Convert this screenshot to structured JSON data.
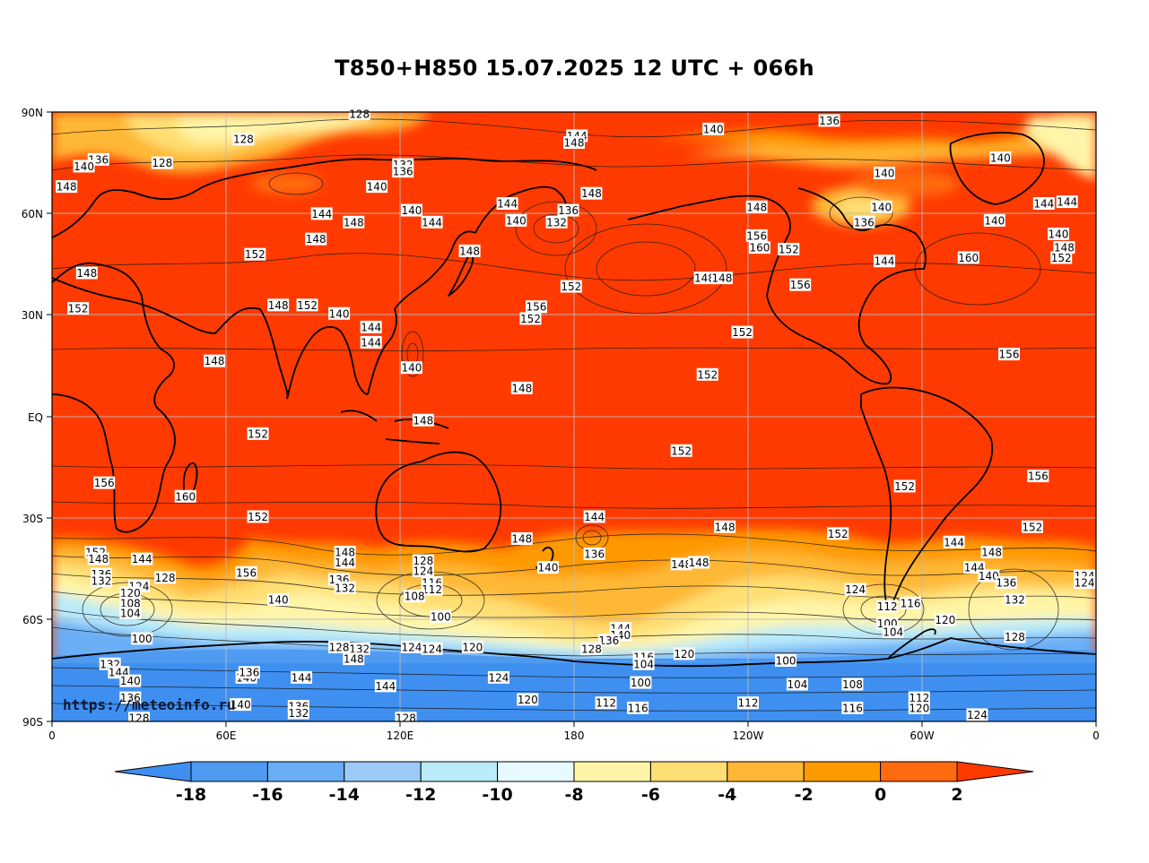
{
  "title": "T850+H850 15.07.2025 12 UTC + 066h",
  "watermark": "https://meteoinfo.ru",
  "y_axis_labels": [
    "90N",
    "60N",
    "30N",
    "EQ",
    "30S",
    "60S",
    "90S"
  ],
  "x_axis_labels": [
    "0",
    "60E",
    "120E",
    "180",
    "120W",
    "60W",
    "0"
  ],
  "colorbar": {
    "ticks": [
      "-18",
      "-16",
      "-14",
      "-12",
      "-10",
      "-8",
      "-6",
      "-4",
      "-2",
      "0",
      "2"
    ],
    "colors": [
      "#3e8ff0",
      "#4f9bf2",
      "#6aaef5",
      "#9ccaf8",
      "#b9ebfa",
      "#e6faff",
      "#fff5a8",
      "#ffdf73",
      "#ffb835",
      "#ff9900",
      "#ff6a10",
      "#ff3a00"
    ]
  },
  "contour_labels": [
    {
      "t": "128",
      "lon": 106,
      "lat": 89.5
    },
    {
      "t": "128",
      "lon": 66,
      "lat": 82
    },
    {
      "t": "128",
      "lon": 38,
      "lat": 75
    },
    {
      "t": "136",
      "lon": 16,
      "lat": 76
    },
    {
      "t": "140",
      "lon": 11,
      "lat": 74
    },
    {
      "t": "148",
      "lon": 5,
      "lat": 68
    },
    {
      "t": "132",
      "lon": 121,
      "lat": 74.5
    },
    {
      "t": "136",
      "lon": 121,
      "lat": 72.5
    },
    {
      "t": "140",
      "lon": 112,
      "lat": 68
    },
    {
      "t": "144",
      "lon": 181,
      "lat": 83
    },
    {
      "t": "148",
      "lon": 180,
      "lat": 81
    },
    {
      "t": "140",
      "lon": -132,
      "lat": 85
    },
    {
      "t": "136",
      "lon": -92,
      "lat": 87.5
    },
    {
      "t": "140",
      "lon": -33,
      "lat": 76.5
    },
    {
      "t": "140",
      "lon": -73,
      "lat": 72
    },
    {
      "t": "148",
      "lon": 186,
      "lat": 66
    },
    {
      "t": "140",
      "lon": -74,
      "lat": 62
    },
    {
      "t": "144",
      "lon": -18,
      "lat": 63
    },
    {
      "t": "144",
      "lon": -10,
      "lat": 63.5
    },
    {
      "t": "140",
      "lon": -35,
      "lat": 58
    },
    {
      "t": "140",
      "lon": -13,
      "lat": 54
    },
    {
      "t": "148",
      "lon": -11,
      "lat": 50
    },
    {
      "t": "152",
      "lon": -12,
      "lat": 47
    },
    {
      "t": "160",
      "lon": -44,
      "lat": 47
    },
    {
      "t": "144",
      "lon": 93,
      "lat": 60
    },
    {
      "t": "148",
      "lon": 104,
      "lat": 57.5
    },
    {
      "t": "148",
      "lon": 91,
      "lat": 52.5
    },
    {
      "t": "140",
      "lon": 124,
      "lat": 61
    },
    {
      "t": "144",
      "lon": 131,
      "lat": 57.5
    },
    {
      "t": "144",
      "lon": 157,
      "lat": 63
    },
    {
      "t": "136",
      "lon": 178,
      "lat": 61
    },
    {
      "t": "140",
      "lon": 160,
      "lat": 58
    },
    {
      "t": "132",
      "lon": 174,
      "lat": 57.5
    },
    {
      "t": "148",
      "lon": 144,
      "lat": 49
    },
    {
      "t": "148",
      "lon": -117,
      "lat": 62
    },
    {
      "t": "152",
      "lon": -106,
      "lat": 49.5
    },
    {
      "t": "136",
      "lon": -80,
      "lat": 57.5
    },
    {
      "t": "156",
      "lon": -117,
      "lat": 53.5
    },
    {
      "t": "160",
      "lon": -116,
      "lat": 50
    },
    {
      "t": "152",
      "lon": 70,
      "lat": 48
    },
    {
      "t": "148",
      "lon": 12,
      "lat": 42.5
    },
    {
      "t": "152",
      "lon": 9,
      "lat": 32
    },
    {
      "t": "148",
      "lon": 78,
      "lat": 33
    },
    {
      "t": "152",
      "lon": 88,
      "lat": 33
    },
    {
      "t": "140",
      "lon": 99,
      "lat": 30.5
    },
    {
      "t": "144",
      "lon": 110,
      "lat": 26.5
    },
    {
      "t": "144",
      "lon": 110,
      "lat": 22
    },
    {
      "t": "152",
      "lon": 179,
      "lat": 38.5
    },
    {
      "t": "156",
      "lon": 167,
      "lat": 32.5
    },
    {
      "t": "152",
      "lon": 165,
      "lat": 29
    },
    {
      "t": "148",
      "lon": -135,
      "lat": 41
    },
    {
      "t": "148",
      "lon": -129,
      "lat": 41
    },
    {
      "t": "156",
      "lon": -102,
      "lat": 39
    },
    {
      "t": "144",
      "lon": -73,
      "lat": 46
    },
    {
      "t": "152",
      "lon": -122,
      "lat": 25
    },
    {
      "t": "148",
      "lon": 56,
      "lat": 16.5
    },
    {
      "t": "140",
      "lon": 124,
      "lat": 14.5
    },
    {
      "t": "148",
      "lon": 162,
      "lat": 8.5
    },
    {
      "t": "152",
      "lon": -134,
      "lat": 12.5
    },
    {
      "t": "156",
      "lon": -30,
      "lat": 18.5
    },
    {
      "t": "148",
      "lon": 128,
      "lat": -1
    },
    {
      "t": "152",
      "lon": 71,
      "lat": -5
    },
    {
      "t": "152",
      "lon": -143,
      "lat": -10
    },
    {
      "t": "156",
      "lon": 18,
      "lat": -19.5
    },
    {
      "t": "160",
      "lon": 46,
      "lat": -23.5
    },
    {
      "t": "152",
      "lon": -66,
      "lat": -20.5
    },
    {
      "t": "156",
      "lon": -20,
      "lat": -17.5
    },
    {
      "t": "152",
      "lon": 71,
      "lat": -29.5
    },
    {
      "t": "144",
      "lon": 187,
      "lat": -29.5
    },
    {
      "t": "148",
      "lon": 162,
      "lat": -36
    },
    {
      "t": "148",
      "lon": -128,
      "lat": -32.5
    },
    {
      "t": "152",
      "lon": -89,
      "lat": -34.5
    },
    {
      "t": "152",
      "lon": -22,
      "lat": -32.5
    },
    {
      "t": "136",
      "lon": 187,
      "lat": -40.5
    },
    {
      "t": "140",
      "lon": 171,
      "lat": -44.5
    },
    {
      "t": "148",
      "lon": -143,
      "lat": -43.5
    },
    {
      "t": "144",
      "lon": -49,
      "lat": -37
    },
    {
      "t": "148",
      "lon": -36,
      "lat": -40
    },
    {
      "t": "144",
      "lon": -42,
      "lat": -44.5
    },
    {
      "t": "140",
      "lon": -37,
      "lat": -47
    },
    {
      "t": "136",
      "lon": -31,
      "lat": -49
    },
    {
      "t": "132",
      "lon": -28,
      "lat": -54
    },
    {
      "t": "124",
      "lon": -4,
      "lat": -47
    },
    {
      "t": "124",
      "lon": -4,
      "lat": -49
    },
    {
      "t": "152",
      "lon": 15,
      "lat": -40
    },
    {
      "t": "148",
      "lon": 16,
      "lat": -42
    },
    {
      "t": "144",
      "lon": 31,
      "lat": -42
    },
    {
      "t": "136",
      "lon": 17,
      "lat": -46.5
    },
    {
      "t": "132",
      "lon": 17,
      "lat": -48.5
    },
    {
      "t": "128",
      "lon": 39,
      "lat": -47.5
    },
    {
      "t": "124",
      "lon": 30,
      "lat": -50
    },
    {
      "t": "120",
      "lon": 27,
      "lat": -52
    },
    {
      "t": "108",
      "lon": 27,
      "lat": -55
    },
    {
      "t": "104",
      "lon": 27,
      "lat": -58
    },
    {
      "t": "100",
      "lon": 31,
      "lat": -65.5
    },
    {
      "t": "156",
      "lon": 67,
      "lat": -46
    },
    {
      "t": "140",
      "lon": 78,
      "lat": -54
    },
    {
      "t": "148",
      "lon": 101,
      "lat": -40
    },
    {
      "t": "144",
      "lon": 101,
      "lat": -43
    },
    {
      "t": "136",
      "lon": 99,
      "lat": -48
    },
    {
      "t": "132",
      "lon": 101,
      "lat": -50.5
    },
    {
      "t": "128",
      "lon": 128,
      "lat": -42.5
    },
    {
      "t": "124",
      "lon": 128,
      "lat": -45.5
    },
    {
      "t": "116",
      "lon": 131,
      "lat": -49
    },
    {
      "t": "112",
      "lon": 131,
      "lat": -51
    },
    {
      "t": "108",
      "lon": 125,
      "lat": -53
    },
    {
      "t": "100",
      "lon": 134,
      "lat": -59
    },
    {
      "t": "148",
      "lon": -137,
      "lat": -43
    },
    {
      "t": "144",
      "lon": 196,
      "lat": -62.5
    },
    {
      "t": "140",
      "lon": 196,
      "lat": -64.5
    },
    {
      "t": "136",
      "lon": 192,
      "lat": -66
    },
    {
      "t": "128",
      "lon": 186,
      "lat": -68.5
    },
    {
      "t": "124",
      "lon": -83,
      "lat": -51
    },
    {
      "t": "116",
      "lon": -64,
      "lat": -55
    },
    {
      "t": "112",
      "lon": -72,
      "lat": -56
    },
    {
      "t": "100",
      "lon": -72,
      "lat": -61
    },
    {
      "t": "104",
      "lon": -70,
      "lat": -63.5
    },
    {
      "t": "120",
      "lon": -52,
      "lat": -60
    },
    {
      "t": "128",
      "lon": -28,
      "lat": -65
    },
    {
      "t": "128",
      "lon": 99,
      "lat": -68
    },
    {
      "t": "132",
      "lon": 106,
      "lat": -68.5
    },
    {
      "t": "148",
      "lon": 104,
      "lat": -71.5
    },
    {
      "t": "124",
      "lon": 124,
      "lat": -68
    },
    {
      "t": "124",
      "lon": 131,
      "lat": -68.5
    },
    {
      "t": "120",
      "lon": 145,
      "lat": -68
    },
    {
      "t": "116",
      "lon": 204,
      "lat": -71
    },
    {
      "t": "104",
      "lon": 204,
      "lat": -73
    },
    {
      "t": "120",
      "lon": 218,
      "lat": -70
    },
    {
      "t": "100",
      "lon": 203,
      "lat": -78.5
    },
    {
      "t": "100",
      "lon": -107,
      "lat": -72
    },
    {
      "t": "104",
      "lon": -103,
      "lat": -79
    },
    {
      "t": "108",
      "lon": -84,
      "lat": -79
    },
    {
      "t": "116",
      "lon": -84,
      "lat": -86
    },
    {
      "t": "112",
      "lon": -61,
      "lat": -83
    },
    {
      "t": "120",
      "lon": -61,
      "lat": -86
    },
    {
      "t": "124",
      "lon": -41,
      "lat": -88
    },
    {
      "t": "112",
      "lon": -120,
      "lat": -84.5
    },
    {
      "t": "112",
      "lon": 191,
      "lat": -84.5
    },
    {
      "t": "116",
      "lon": 202,
      "lat": -86
    },
    {
      "t": "120",
      "lon": 164,
      "lat": -83.5
    },
    {
      "t": "124",
      "lon": 154,
      "lat": -77
    },
    {
      "t": "144",
      "lon": 115,
      "lat": -79.5
    },
    {
      "t": "144",
      "lon": 86,
      "lat": -77
    },
    {
      "t": "136",
      "lon": 85,
      "lat": -85.5
    },
    {
      "t": "132",
      "lon": 85,
      "lat": -87.5
    },
    {
      "t": "128",
      "lon": 122,
      "lat": -89
    },
    {
      "t": "140",
      "lon": 67,
      "lat": -77
    },
    {
      "t": "136",
      "lon": 68,
      "lat": -75.5
    },
    {
      "t": "140",
      "lon": 65,
      "lat": -85
    },
    {
      "t": "132",
      "lon": 20,
      "lat": -73
    },
    {
      "t": "144",
      "lon": 23,
      "lat": -75.5
    },
    {
      "t": "140",
      "lon": 27,
      "lat": -78
    },
    {
      "t": "136",
      "lon": 27,
      "lat": -83
    },
    {
      "t": "128",
      "lon": 30,
      "lat": -89
    }
  ]
}
